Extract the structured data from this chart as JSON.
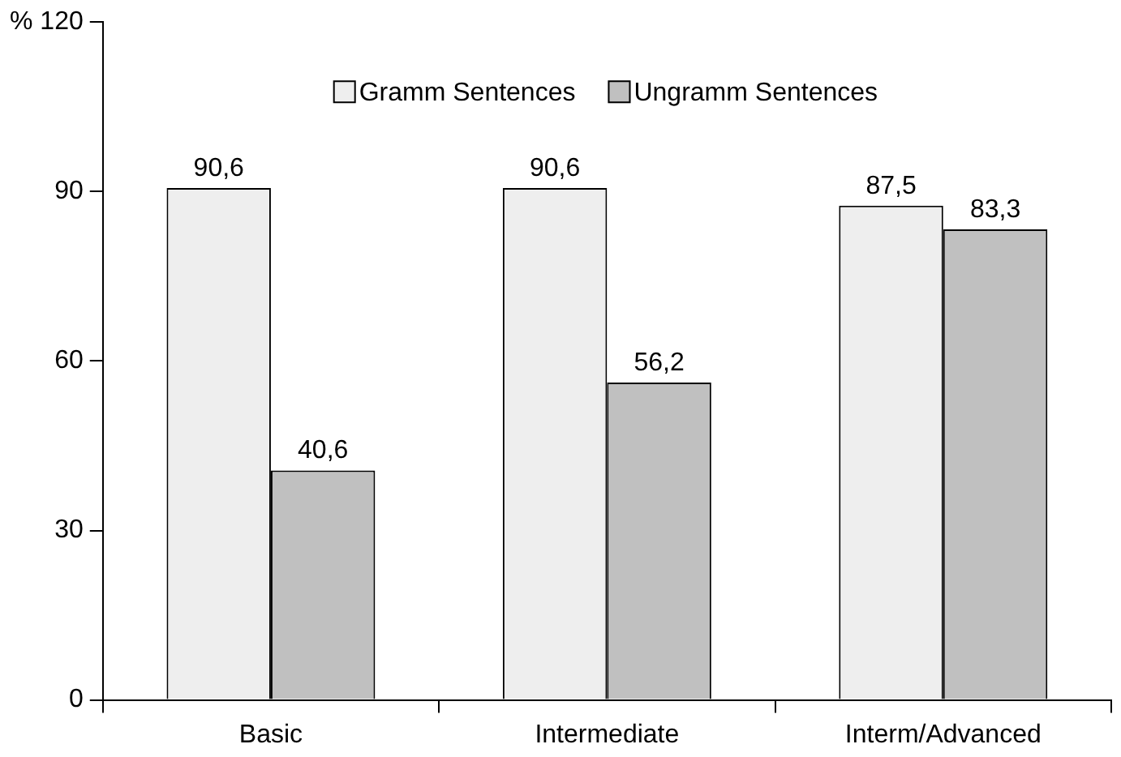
{
  "chart_data": {
    "type": "bar",
    "categories": [
      "Basic",
      "Intermediate",
      "Interm/Advanced"
    ],
    "series": [
      {
        "name": "Gramm Sentences",
        "color": "#eeeeee",
        "values": [
          90.6,
          90.6,
          87.5
        ],
        "value_labels": [
          "90,6",
          "90,6",
          "87,5"
        ]
      },
      {
        "name": "Ungramm Sentences",
        "color": "#c0c0c0",
        "values": [
          40.6,
          56.2,
          83.3
        ],
        "value_labels": [
          "40,6",
          "56,2",
          "83,3"
        ]
      }
    ],
    "ylim": [
      0,
      120
    ],
    "yticks": [
      0,
      30,
      60,
      90,
      {
        "value": 120,
        "label": "% 120"
      }
    ],
    "grid": false,
    "legend": "top"
  }
}
